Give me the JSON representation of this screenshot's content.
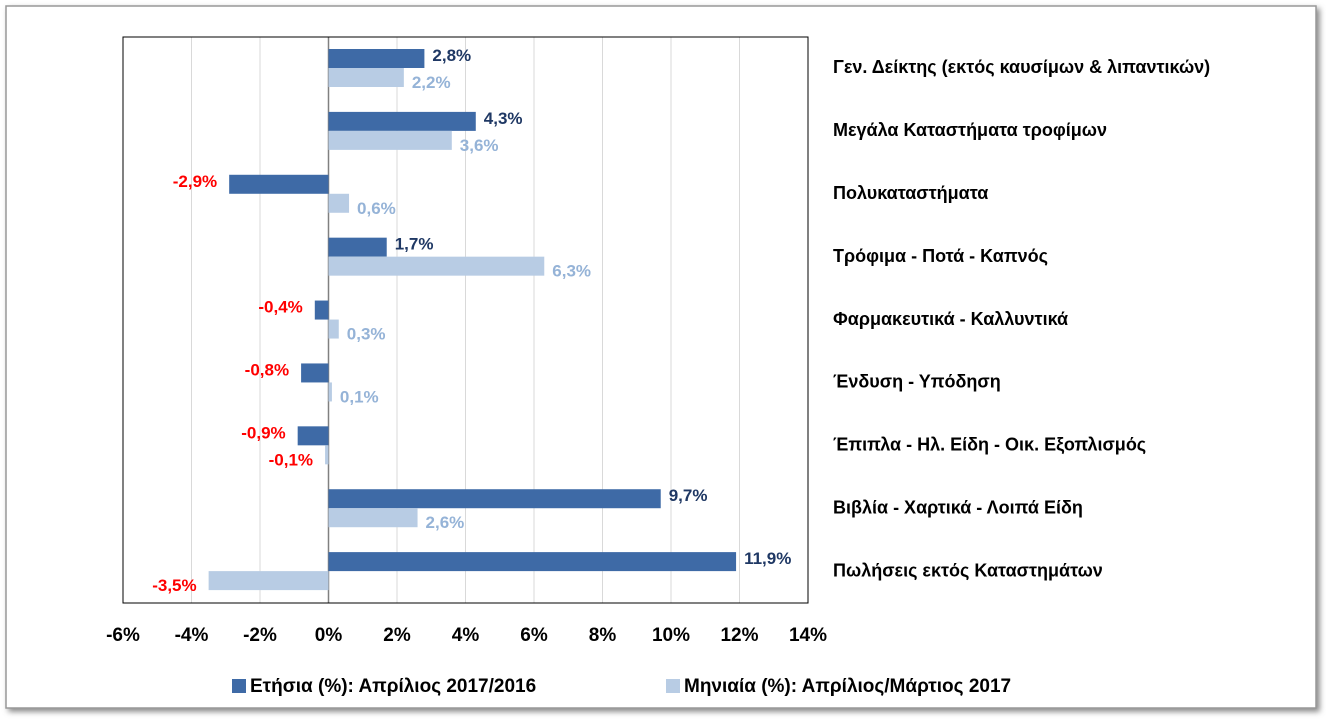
{
  "chart_data": {
    "type": "hbar",
    "categories": [
      "Γεν. Δείκτης (εκτός καυσίμων & λιπαντικών)",
      "Μεγάλα Καταστήματα τροφίμων",
      "Πολυκαταστήματα",
      "Τρόφιμα - Ποτά - Καπνός",
      "Φαρμακευτικά - Καλλυντικά",
      "Ένδυση - Υπόδηση",
      "Έπιπλα - Ηλ. Είδη - Οικ. Εξοπλισμός",
      "Βιβλία - Χαρτικά - Λοιπά Είδη",
      "Πωλήσεις εκτός Καταστημάτων"
    ],
    "series": [
      {
        "name": "Ετήσια (%): Απρίλιος 2017/2016",
        "color": "#3e6aa6",
        "label_color": "#1f3864",
        "values": [
          2.8,
          4.3,
          -2.9,
          1.7,
          -0.4,
          -0.8,
          -0.9,
          9.7,
          11.9
        ],
        "value_labels": [
          "2,8%",
          "4,3%",
          "-2,9%",
          "1,7%",
          "-0,4%",
          "-0,8%",
          "-0,9%",
          "9,7%",
          "11,9%"
        ]
      },
      {
        "name": "Μηνιαία (%): Απρίλιος/Μάρτιος 2017",
        "color": "#b8cce4",
        "label_color": "#95b3d7",
        "values": [
          2.2,
          3.6,
          0.6,
          6.3,
          0.3,
          0.1,
          -0.1,
          2.6,
          -3.5
        ],
        "value_labels": [
          "2,2%",
          "3,6%",
          "0,6%",
          "6,3%",
          "0,3%",
          "0,1%",
          "-0,1%",
          "2,6%",
          "-3,5%"
        ]
      }
    ],
    "negative_label_color": "#ff0000",
    "xlim": [
      -6,
      14
    ],
    "xticks": [
      {
        "value": -6,
        "label": "-6%"
      },
      {
        "value": -4,
        "label": "-4%"
      },
      {
        "value": -2,
        "label": "-2%"
      },
      {
        "value": 0,
        "label": "0%"
      },
      {
        "value": 2,
        "label": "2%"
      },
      {
        "value": 4,
        "label": "4%"
      },
      {
        "value": 6,
        "label": "6%"
      },
      {
        "value": 8,
        "label": "8%"
      },
      {
        "value": 10,
        "label": "10%"
      },
      {
        "value": 12,
        "label": "12%"
      },
      {
        "value": 14,
        "label": "14%"
      }
    ],
    "grid": true,
    "legend": "bottom"
  }
}
